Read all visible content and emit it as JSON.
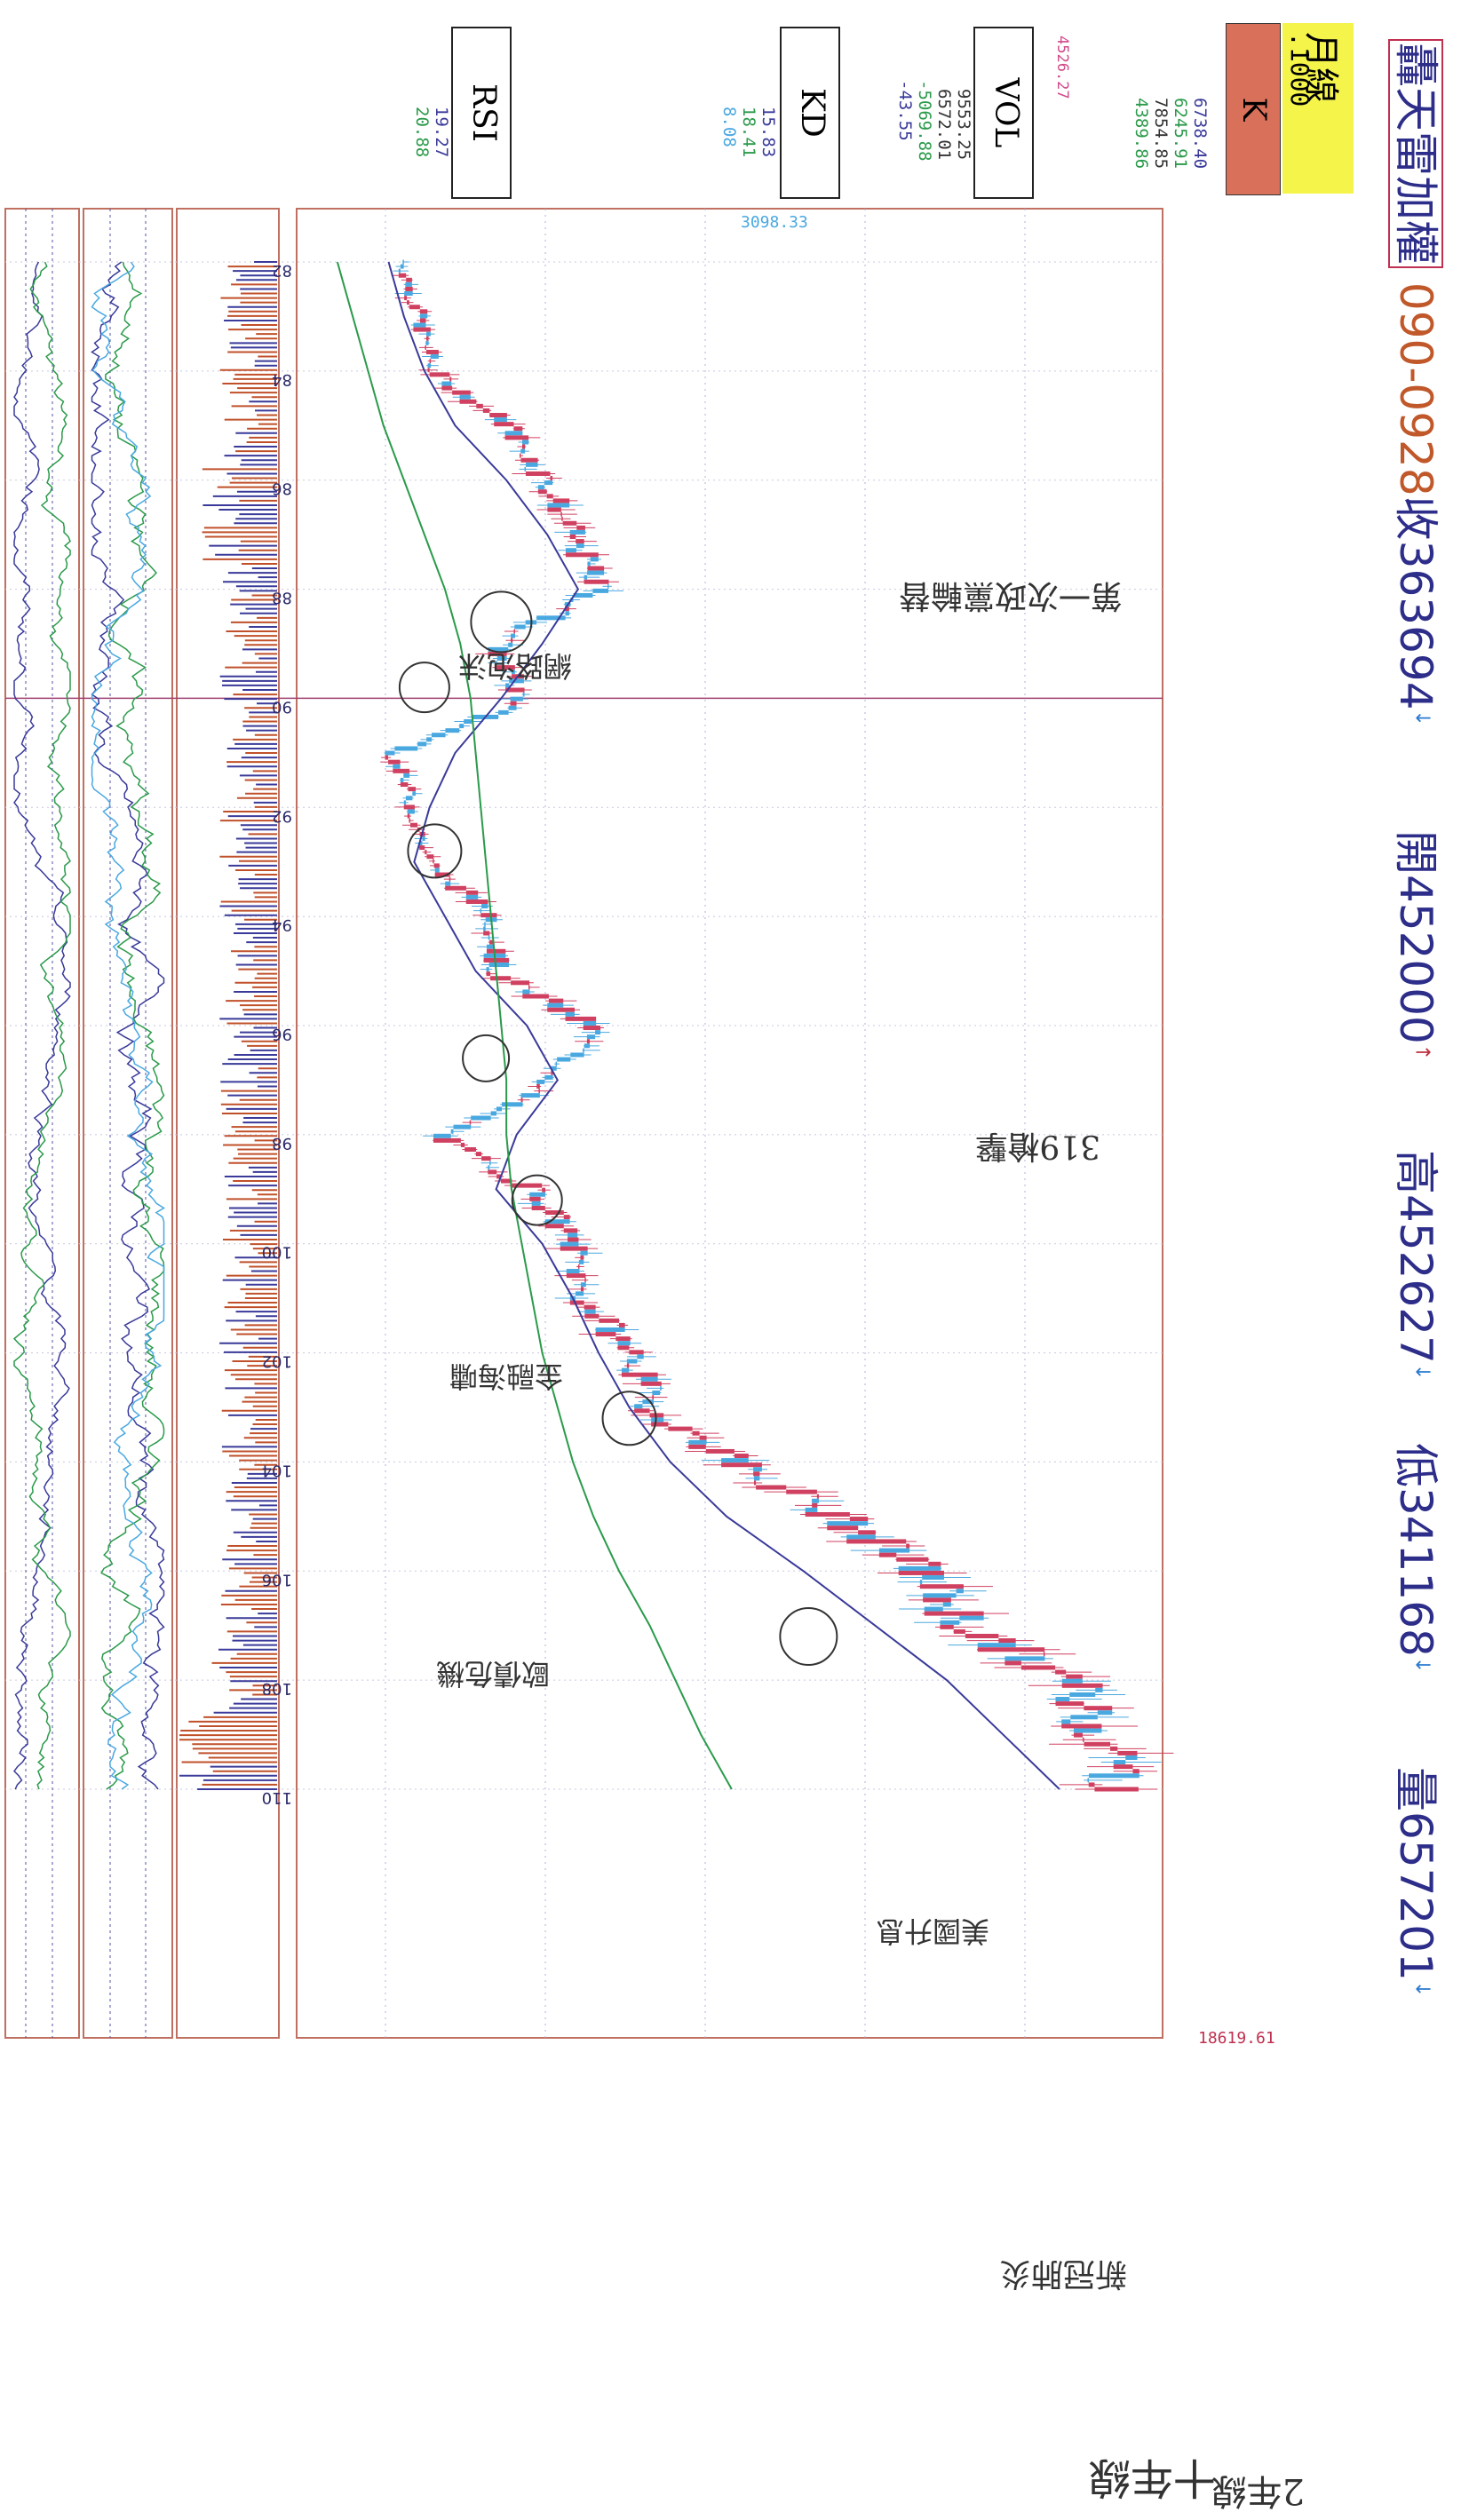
{
  "header": {
    "name": "轟天雷加權",
    "code": "090-0928",
    "close_label": "收",
    "close_value": "363694",
    "open_label": "開",
    "open_value": "452000",
    "high_label": "高",
    "high_value": "452627",
    "low_label": "低",
    "low_value": "341168",
    "volume_label": "量",
    "volume_value": "657201"
  },
  "period": {
    "label": "月線",
    "scale": ".1000"
  },
  "k_panel": {
    "label": "K",
    "values": [
      "6738.40",
      "6245.91",
      "7854.85",
      "4389.86"
    ],
    "top_value": "18619.61",
    "bottom_value": "3098.33",
    "axis_marker": "4526.27"
  },
  "vol_panel": {
    "label": "VOL",
    "values": [
      "9553.25",
      "6572.01",
      "-5069.88",
      "-43.55"
    ]
  },
  "kd_panel": {
    "label": "KD",
    "values": [
      "15.83",
      "18.41",
      "8.08"
    ]
  },
  "rsi_panel": {
    "label": "RSI",
    "values": [
      "19.27",
      "20.88"
    ]
  },
  "year_ticks": [
    "82",
    "84",
    "86",
    "88",
    "90",
    "92",
    "94",
    "96",
    "98",
    "100",
    "102",
    "104",
    "106",
    "108",
    "110"
  ],
  "annotations": {
    "event_1": "第一次政黨輪替",
    "event_2": "網路泡沫",
    "event_3": "319槍擊",
    "event_4": "金融海嘯",
    "event_5": "歐債危機",
    "event_6": "美國升息",
    "event_7": "新冠肺炎",
    "line_2yr": "2年線",
    "line_10yr": "十年線"
  },
  "colors": {
    "up": "#d04060",
    "down": "#4aa8e0",
    "ma_2yr": "#3a3a9a",
    "ma_10yr": "#2a9a4a",
    "frame": "#c07060"
  },
  "chart_data": {
    "type": "line",
    "x_tick_labels": [
      "82",
      "84",
      "86",
      "88",
      "90",
      "92",
      "94",
      "96",
      "98",
      "100",
      "102",
      "104",
      "106",
      "108",
      "110"
    ],
    "price": {
      "x": [
        82,
        83,
        84,
        85,
        86,
        87,
        88,
        89,
        90,
        91,
        92,
        93,
        94,
        95,
        96,
        97,
        98,
        99,
        100,
        101,
        102,
        103,
        104,
        105,
        106,
        107,
        108,
        109,
        110
      ],
      "values": [
        4500,
        4800,
        5100,
        6600,
        7300,
        7800,
        8300,
        6300,
        6800,
        4300,
        4700,
        5000,
        6300,
        6300,
        8200,
        7400,
        5200,
        7100,
        7800,
        8000,
        9000,
        9300,
        11100,
        13000,
        14700,
        15500,
        17500,
        18200,
        18600
      ],
      "ylim": [
        3098.33,
        18619.61
      ]
    },
    "series": [
      {
        "name": "2年線",
        "values": [
          4200,
          4500,
          4900,
          5500,
          6500,
          7300,
          7900,
          7200,
          6400,
          5500,
          5000,
          4700,
          5300,
          5900,
          6900,
          7500,
          6700,
          6300,
          7200,
          7800,
          8300,
          8900,
          9700,
          10800,
          12300,
          13700,
          15100,
          16200,
          17300
        ]
      },
      {
        "name": "十年線",
        "values": [
          3200,
          3500,
          3800,
          4100,
          4500,
          4900,
          5300,
          5600,
          5800,
          5900,
          6000,
          6100,
          6200,
          6300,
          6400,
          6500,
          6500,
          6600,
          6800,
          7000,
          7200,
          7500,
          7800,
          8200,
          8700,
          9300,
          9800,
          10300,
          10900
        ]
      }
    ],
    "panels": [
      "K",
      "VOL",
      "KD",
      "RSI"
    ]
  }
}
